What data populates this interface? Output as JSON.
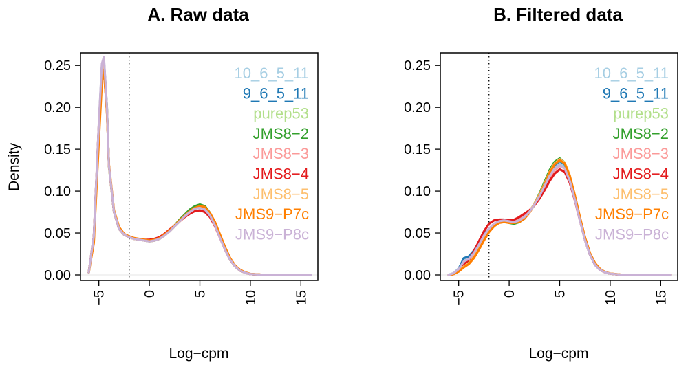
{
  "chart_data": [
    {
      "type": "line",
      "title": "A. Raw data",
      "xlabel": "Log−cpm",
      "ylabel": "Density",
      "xlim": [
        -6,
        16
      ],
      "ylim": [
        0,
        0.26
      ],
      "xticks": [
        "−5",
        "0",
        "5",
        "10",
        "15"
      ],
      "xtick_values": [
        -5,
        0,
        5,
        10,
        15
      ],
      "yticks": [
        "0.00",
        "0.05",
        "0.10",
        "0.15",
        "0.20",
        "0.25"
      ],
      "ytick_values": [
        0,
        0.05,
        0.1,
        0.15,
        0.2,
        0.25
      ],
      "cutoff_line_x": -2,
      "grid": false,
      "legend_position": "top-right",
      "x": [
        -6,
        -5.5,
        -5,
        -4.7,
        -4.5,
        -4.2,
        -4,
        -3.5,
        -3,
        -2.5,
        -2,
        -1.5,
        -1,
        -0.5,
        0,
        0.5,
        1,
        1.5,
        2,
        2.5,
        3,
        3.5,
        4,
        4.5,
        5,
        5.5,
        6,
        6.5,
        7,
        7.5,
        8,
        8.5,
        9,
        9.5,
        10,
        11,
        12,
        13,
        14,
        15,
        16
      ],
      "series": [
        {
          "name": "10_6_5_11",
          "color": "#a6cee3",
          "values": [
            0.003,
            0.045,
            0.18,
            0.25,
            0.258,
            0.2,
            0.13,
            0.075,
            0.055,
            0.048,
            0.045,
            0.043,
            0.042,
            0.041,
            0.04,
            0.041,
            0.043,
            0.047,
            0.052,
            0.058,
            0.064,
            0.07,
            0.075,
            0.079,
            0.081,
            0.079,
            0.072,
            0.06,
            0.045,
            0.03,
            0.018,
            0.01,
            0.005,
            0.0025,
            0.001,
            0.0003,
            0.0001,
            0,
            0,
            0,
            0
          ]
        },
        {
          "name": "9_6_5_11",
          "color": "#1f78b4",
          "values": [
            0.003,
            0.044,
            0.175,
            0.245,
            0.255,
            0.198,
            0.13,
            0.075,
            0.055,
            0.048,
            0.045,
            0.043,
            0.042,
            0.041,
            0.04,
            0.041,
            0.043,
            0.047,
            0.052,
            0.058,
            0.064,
            0.07,
            0.075,
            0.079,
            0.081,
            0.079,
            0.072,
            0.06,
            0.045,
            0.03,
            0.018,
            0.01,
            0.005,
            0.0025,
            0.001,
            0.0003,
            0.0001,
            0,
            0,
            0,
            0
          ]
        },
        {
          "name": "purep53",
          "color": "#b2df8a",
          "values": [
            0.003,
            0.042,
            0.17,
            0.24,
            0.25,
            0.195,
            0.128,
            0.075,
            0.055,
            0.048,
            0.045,
            0.043,
            0.042,
            0.041,
            0.04,
            0.041,
            0.043,
            0.047,
            0.052,
            0.058,
            0.064,
            0.07,
            0.076,
            0.08,
            0.082,
            0.08,
            0.073,
            0.061,
            0.046,
            0.031,
            0.018,
            0.01,
            0.005,
            0.0025,
            0.001,
            0.0003,
            0.0001,
            0,
            0,
            0,
            0
          ]
        },
        {
          "name": "JMS8−2",
          "color": "#33a02c",
          "values": [
            0.003,
            0.045,
            0.178,
            0.248,
            0.256,
            0.2,
            0.13,
            0.075,
            0.055,
            0.048,
            0.045,
            0.043,
            0.042,
            0.041,
            0.04,
            0.041,
            0.043,
            0.047,
            0.053,
            0.059,
            0.066,
            0.072,
            0.078,
            0.082,
            0.084,
            0.082,
            0.074,
            0.062,
            0.046,
            0.031,
            0.018,
            0.01,
            0.005,
            0.0025,
            0.001,
            0.0003,
            0.0001,
            0,
            0,
            0,
            0
          ]
        },
        {
          "name": "JMS8−3",
          "color": "#fb9a99",
          "values": [
            0.003,
            0.044,
            0.175,
            0.245,
            0.254,
            0.198,
            0.13,
            0.075,
            0.055,
            0.048,
            0.045,
            0.043,
            0.042,
            0.041,
            0.04,
            0.041,
            0.043,
            0.047,
            0.052,
            0.058,
            0.064,
            0.07,
            0.076,
            0.08,
            0.081,
            0.079,
            0.072,
            0.06,
            0.045,
            0.03,
            0.018,
            0.01,
            0.005,
            0.0025,
            0.001,
            0.0003,
            0.0001,
            0,
            0,
            0,
            0
          ]
        },
        {
          "name": "JMS8−4",
          "color": "#e31a1c",
          "values": [
            0.003,
            0.046,
            0.18,
            0.24,
            0.245,
            0.195,
            0.13,
            0.075,
            0.055,
            0.048,
            0.045,
            0.043,
            0.043,
            0.042,
            0.042,
            0.043,
            0.045,
            0.049,
            0.054,
            0.059,
            0.064,
            0.069,
            0.073,
            0.076,
            0.077,
            0.075,
            0.069,
            0.058,
            0.044,
            0.03,
            0.018,
            0.01,
            0.005,
            0.0025,
            0.001,
            0.0003,
            0.0002,
            0.0002,
            0.0002,
            0.0003,
            0.0003
          ]
        },
        {
          "name": "JMS8−5",
          "color": "#fdbf6f",
          "values": [
            0.003,
            0.04,
            0.165,
            0.235,
            0.248,
            0.195,
            0.13,
            0.076,
            0.056,
            0.048,
            0.045,
            0.043,
            0.042,
            0.041,
            0.04,
            0.041,
            0.043,
            0.047,
            0.052,
            0.058,
            0.064,
            0.07,
            0.075,
            0.079,
            0.081,
            0.08,
            0.073,
            0.062,
            0.047,
            0.032,
            0.019,
            0.011,
            0.0055,
            0.0028,
            0.0012,
            0.0003,
            0.0001,
            0,
            0,
            0,
            0
          ]
        },
        {
          "name": "JMS9−P7c",
          "color": "#ff7f00",
          "values": [
            0.003,
            0.038,
            0.16,
            0.23,
            0.245,
            0.195,
            0.132,
            0.077,
            0.057,
            0.049,
            0.046,
            0.044,
            0.043,
            0.042,
            0.041,
            0.042,
            0.044,
            0.048,
            0.053,
            0.059,
            0.065,
            0.071,
            0.076,
            0.08,
            0.082,
            0.081,
            0.074,
            0.063,
            0.048,
            0.033,
            0.02,
            0.011,
            0.006,
            0.003,
            0.0013,
            0.0004,
            0.0001,
            0,
            0,
            0,
            0
          ]
        },
        {
          "name": "JMS9−P8c",
          "color": "#cab2d6",
          "values": [
            0.003,
            0.046,
            0.182,
            0.252,
            0.26,
            0.2,
            0.13,
            0.075,
            0.055,
            0.048,
            0.045,
            0.043,
            0.042,
            0.041,
            0.04,
            0.041,
            0.043,
            0.047,
            0.052,
            0.058,
            0.064,
            0.07,
            0.075,
            0.079,
            0.08,
            0.078,
            0.071,
            0.059,
            0.044,
            0.03,
            0.018,
            0.01,
            0.005,
            0.0025,
            0.001,
            0.0003,
            0.0001,
            0,
            0,
            0,
            0
          ]
        }
      ]
    },
    {
      "type": "line",
      "title": "B. Filtered data",
      "xlabel": "Log−cpm",
      "ylabel": "",
      "xlim": [
        -6,
        16
      ],
      "ylim": [
        0,
        0.26
      ],
      "xticks": [
        "−5",
        "0",
        "5",
        "10",
        "15"
      ],
      "xtick_values": [
        -5,
        0,
        5,
        10,
        15
      ],
      "yticks": [
        "0.00",
        "0.05",
        "0.10",
        "0.15",
        "0.20",
        "0.25"
      ],
      "ytick_values": [
        0,
        0.05,
        0.1,
        0.15,
        0.2,
        0.25
      ],
      "cutoff_line_x": -2,
      "grid": false,
      "legend_position": "top-right",
      "x": [
        -6,
        -5.5,
        -5,
        -4.5,
        -4,
        -3.5,
        -3,
        -2.5,
        -2,
        -1.5,
        -1,
        -0.5,
        0,
        0.5,
        1,
        1.5,
        2,
        2.5,
        3,
        3.5,
        4,
        4.5,
        5,
        5.5,
        6,
        6.5,
        7,
        7.5,
        8,
        8.5,
        9,
        9.5,
        10,
        11,
        12,
        13,
        14,
        15,
        16
      ],
      "series": [
        {
          "name": "10_6_5_11",
          "color": "#a6cee3",
          "values": [
            0.0,
            0.002,
            0.008,
            0.018,
            0.02,
            0.026,
            0.036,
            0.046,
            0.054,
            0.06,
            0.064,
            0.066,
            0.065,
            0.064,
            0.065,
            0.069,
            0.075,
            0.083,
            0.093,
            0.105,
            0.118,
            0.128,
            0.133,
            0.13,
            0.115,
            0.092,
            0.066,
            0.042,
            0.024,
            0.012,
            0.006,
            0.003,
            0.0015,
            0.0003,
            0.0001,
            0,
            0,
            0,
            0
          ]
        },
        {
          "name": "9_6_5_11",
          "color": "#1f78b4",
          "values": [
            0.0,
            0.002,
            0.007,
            0.02,
            0.022,
            0.029,
            0.038,
            0.048,
            0.055,
            0.061,
            0.064,
            0.065,
            0.064,
            0.063,
            0.064,
            0.068,
            0.075,
            0.084,
            0.095,
            0.108,
            0.121,
            0.131,
            0.136,
            0.132,
            0.116,
            0.092,
            0.066,
            0.042,
            0.024,
            0.012,
            0.006,
            0.003,
            0.0015,
            0.0003,
            0.0001,
            0,
            0,
            0,
            0
          ]
        },
        {
          "name": "purep53",
          "color": "#b2df8a",
          "values": [
            0.0,
            0.001,
            0.005,
            0.012,
            0.016,
            0.023,
            0.033,
            0.044,
            0.053,
            0.06,
            0.064,
            0.065,
            0.064,
            0.063,
            0.064,
            0.068,
            0.075,
            0.085,
            0.096,
            0.109,
            0.122,
            0.132,
            0.137,
            0.133,
            0.117,
            0.093,
            0.067,
            0.043,
            0.025,
            0.013,
            0.006,
            0.003,
            0.0015,
            0.0003,
            0.0001,
            0,
            0,
            0,
            0
          ]
        },
        {
          "name": "JMS8−2",
          "color": "#33a02c",
          "values": [
            0.0,
            0.001,
            0.005,
            0.014,
            0.017,
            0.024,
            0.034,
            0.045,
            0.054,
            0.061,
            0.064,
            0.064,
            0.062,
            0.061,
            0.063,
            0.067,
            0.075,
            0.085,
            0.097,
            0.111,
            0.125,
            0.135,
            0.139,
            0.134,
            0.117,
            0.093,
            0.067,
            0.043,
            0.025,
            0.013,
            0.006,
            0.003,
            0.0015,
            0.0003,
            0.0001,
            0,
            0,
            0,
            0
          ]
        },
        {
          "name": "JMS8−3",
          "color": "#fb9a99",
          "values": [
            0.0,
            0.001,
            0.006,
            0.014,
            0.018,
            0.025,
            0.035,
            0.046,
            0.055,
            0.061,
            0.064,
            0.065,
            0.064,
            0.064,
            0.066,
            0.07,
            0.076,
            0.084,
            0.093,
            0.104,
            0.116,
            0.125,
            0.13,
            0.127,
            0.113,
            0.091,
            0.066,
            0.043,
            0.025,
            0.013,
            0.006,
            0.003,
            0.0015,
            0.0003,
            0.0001,
            0,
            0,
            0,
            0
          ]
        },
        {
          "name": "JMS8−4",
          "color": "#e31a1c",
          "values": [
            0.0,
            0.001,
            0.005,
            0.012,
            0.018,
            0.028,
            0.04,
            0.052,
            0.061,
            0.065,
            0.066,
            0.066,
            0.065,
            0.066,
            0.069,
            0.073,
            0.077,
            0.083,
            0.091,
            0.101,
            0.112,
            0.121,
            0.126,
            0.123,
            0.11,
            0.089,
            0.065,
            0.042,
            0.024,
            0.012,
            0.006,
            0.003,
            0.0015,
            0.0003,
            0.0002,
            0.0002,
            0.0002,
            0.0003,
            0.0003
          ]
        },
        {
          "name": "JMS8−5",
          "color": "#fdbf6f",
          "values": [
            0.0,
            0.001,
            0.004,
            0.01,
            0.014,
            0.021,
            0.031,
            0.042,
            0.052,
            0.059,
            0.063,
            0.064,
            0.063,
            0.062,
            0.064,
            0.068,
            0.075,
            0.085,
            0.096,
            0.109,
            0.123,
            0.133,
            0.138,
            0.134,
            0.119,
            0.095,
            0.069,
            0.045,
            0.026,
            0.014,
            0.007,
            0.0035,
            0.0017,
            0.0004,
            0.0001,
            0,
            0,
            0,
            0
          ]
        },
        {
          "name": "JMS9−P7c",
          "color": "#ff7f00",
          "values": [
            0.0,
            0.001,
            0.004,
            0.009,
            0.013,
            0.02,
            0.03,
            0.041,
            0.051,
            0.058,
            0.062,
            0.063,
            0.062,
            0.062,
            0.063,
            0.067,
            0.074,
            0.084,
            0.095,
            0.108,
            0.122,
            0.132,
            0.137,
            0.133,
            0.118,
            0.095,
            0.069,
            0.045,
            0.026,
            0.014,
            0.007,
            0.0035,
            0.0017,
            0.0004,
            0.0001,
            0,
            0,
            0,
            0
          ]
        },
        {
          "name": "JMS9−P8c",
          "color": "#cab2d6",
          "values": [
            0.0,
            0.002,
            0.007,
            0.016,
            0.019,
            0.026,
            0.036,
            0.047,
            0.055,
            0.061,
            0.064,
            0.065,
            0.064,
            0.063,
            0.065,
            0.069,
            0.075,
            0.084,
            0.094,
            0.106,
            0.118,
            0.127,
            0.131,
            0.127,
            0.112,
            0.09,
            0.065,
            0.042,
            0.024,
            0.012,
            0.006,
            0.003,
            0.0015,
            0.0003,
            0.0001,
            0,
            0,
            0,
            0
          ]
        }
      ]
    }
  ]
}
